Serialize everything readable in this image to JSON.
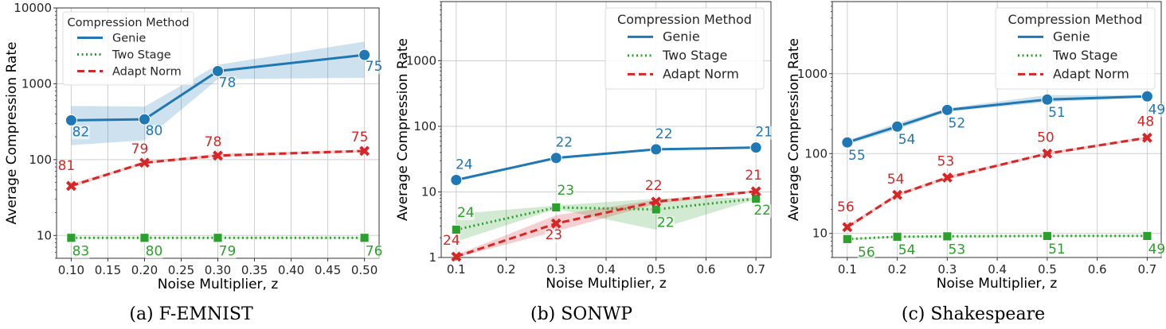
{
  "colors": {
    "genie": "#1f77b4",
    "two_stage": "#2ca02c",
    "adapt_norm": "#d62728",
    "grid": "#cfcfcf"
  },
  "chart_data": [
    {
      "type": "line",
      "caption": "(a) F-EMNIST",
      "xlabel": "Noise Multiplier, z",
      "ylabel": "Average Compression Rate",
      "yscale": "log",
      "xlim": [
        0.08,
        0.52
      ],
      "ylim": [
        5,
        10000
      ],
      "xticks": [
        "0.10",
        "0.15",
        "0.20",
        "0.25",
        "0.30",
        "0.35",
        "0.40",
        "0.45",
        "0.50"
      ],
      "yticks": [
        "10",
        "100",
        "1000",
        "10000"
      ],
      "grid": true,
      "legend": {
        "title": "Compression Method",
        "placement": "top-left",
        "entries": [
          "Genie",
          "Two Stage",
          "Adapt Norm"
        ]
      },
      "x": [
        0.1,
        0.2,
        0.3,
        0.5
      ],
      "series": [
        {
          "name": "Genie",
          "values": [
            330,
            340,
            1470,
            2400
          ],
          "band_low": [
            155,
            180,
            1150,
            1200
          ],
          "band_high": [
            510,
            500,
            1780,
            3600
          ],
          "labels": [
            "82",
            "80",
            "78",
            "75"
          ]
        },
        {
          "name": "Two Stage",
          "values": [
            9.3,
            9.3,
            9.3,
            9.3
          ],
          "band_low": [
            9.1,
            9.1,
            9.1,
            9.1
          ],
          "band_high": [
            9.5,
            9.5,
            9.5,
            9.5
          ],
          "labels": [
            "83",
            "80",
            "79",
            "76"
          ]
        },
        {
          "name": "Adapt Norm",
          "values": [
            45,
            91,
            113,
            130
          ],
          "band_low": [
            43,
            87,
            108,
            125
          ],
          "band_high": [
            48,
            95,
            119,
            136
          ],
          "labels": [
            "81",
            "79",
            "78",
            "75"
          ]
        }
      ]
    },
    {
      "type": "line",
      "caption": "(b) SONWP",
      "xlabel": "Noise Multiplier, z",
      "ylabel": "Average Compression Rate",
      "yscale": "log",
      "xlim": [
        0.07,
        0.73
      ],
      "ylim": [
        1,
        8000
      ],
      "xticks": [
        "0.1",
        "0.2",
        "0.3",
        "0.4",
        "0.5",
        "0.6",
        "0.7"
      ],
      "yticks": [
        "1",
        "10",
        "100",
        "1000"
      ],
      "grid": true,
      "legend": {
        "title": "Compression Method",
        "placement": "top-right",
        "entries": [
          "Genie",
          "Two Stage",
          "Adapt Norm"
        ]
      },
      "x": [
        0.1,
        0.3,
        0.5,
        0.7
      ],
      "series": [
        {
          "name": "Genie",
          "values": [
            15.2,
            33,
            44.6,
            47.5
          ],
          "band_low": [
            14.6,
            31.5,
            43,
            46
          ],
          "band_high": [
            15.8,
            34.5,
            46,
            49
          ],
          "labels": [
            "24",
            "22",
            "22",
            "21"
          ]
        },
        {
          "name": "Two Stage",
          "values": [
            2.66,
            5.8,
            5.4,
            7.9
          ],
          "band_low": [
            1.75,
            5.5,
            2.66,
            7.7
          ],
          "band_high": [
            4.6,
            6.2,
            7.9,
            8.2
          ],
          "labels": [
            "24",
            "23",
            "22",
            "22"
          ]
        },
        {
          "name": "Adapt Norm",
          "values": [
            1.03,
            3.3,
            7.1,
            10.2
          ],
          "band_low": [
            1.0,
            2.5,
            6.6,
            9.8
          ],
          "band_high": [
            1.1,
            4.4,
            7.6,
            10.6
          ],
          "labels": [
            "24",
            "23",
            "22",
            "21"
          ]
        }
      ]
    },
    {
      "type": "line",
      "caption": "(c) Shakespeare",
      "xlabel": "Noise Multiplier, z",
      "ylabel": "Average Compression Rate",
      "yscale": "log",
      "xlim": [
        0.07,
        0.728
      ],
      "ylim": [
        5,
        8000
      ],
      "xticks": [
        "0.1",
        "0.2",
        "0.3",
        "0.4",
        "0.5",
        "0.6",
        "0.7"
      ],
      "yticks": [
        "10",
        "100",
        "1000"
      ],
      "grid": true,
      "legend": {
        "title": "Compression Method",
        "placement": "top-right",
        "entries": [
          "Genie",
          "Two Stage",
          "Adapt Norm"
        ]
      },
      "x": [
        0.1,
        0.2,
        0.3,
        0.5,
        0.7
      ],
      "series": [
        {
          "name": "Genie",
          "values": [
            138,
            218,
            352,
            475,
            520
          ],
          "band_low": [
            130,
            200,
            335,
            440,
            505
          ],
          "band_high": [
            146,
            240,
            370,
            540,
            535
          ],
          "labels": [
            "55",
            "54",
            "52",
            "51",
            "49"
          ]
        },
        {
          "name": "Two Stage",
          "values": [
            8.5,
            9.1,
            9.2,
            9.3,
            9.3
          ],
          "band_low": [
            8.3,
            8.9,
            9.0,
            9.1,
            9.1
          ],
          "band_high": [
            8.7,
            9.3,
            9.4,
            9.5,
            9.5
          ],
          "labels": [
            "56",
            "54",
            "53",
            "51",
            "49"
          ]
        },
        {
          "name": "Adapt Norm",
          "values": [
            12,
            30.4,
            50,
            100,
            158
          ],
          "band_low": [
            11.4,
            29,
            47.5,
            96,
            152
          ],
          "band_high": [
            12.6,
            32,
            52.5,
            104,
            164
          ],
          "labels": [
            "56",
            "54",
            "53",
            "50",
            "48"
          ]
        }
      ]
    }
  ]
}
